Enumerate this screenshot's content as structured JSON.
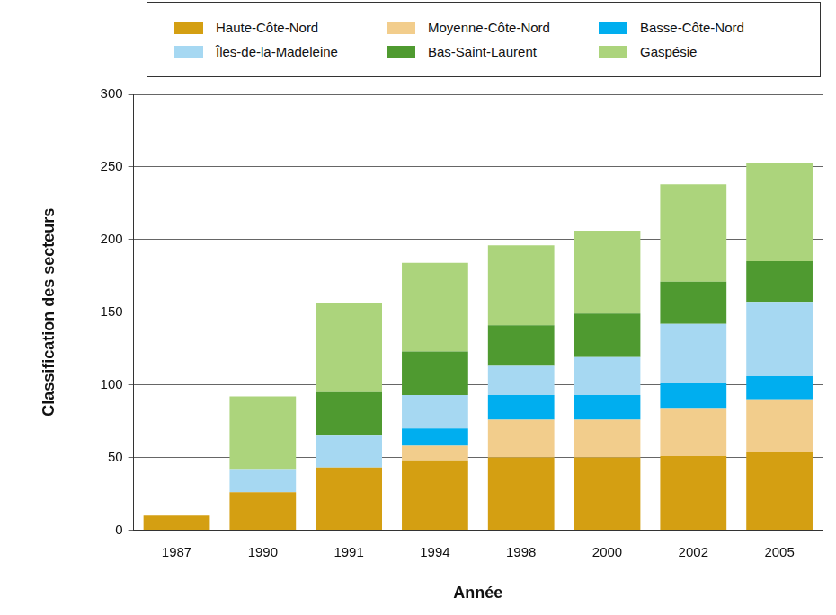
{
  "chart_data": {
    "type": "bar",
    "stacked": true,
    "grid": true,
    "legend": "top",
    "x_label": "Année",
    "y_label": "Classification des secteurs",
    "categories": [
      "1987",
      "1990",
      "1991",
      "1994",
      "1998",
      "2000",
      "2002",
      "2005"
    ],
    "ylim": [
      0,
      300
    ],
    "yticks": [
      0,
      50,
      100,
      150,
      200,
      250,
      300
    ],
    "series": [
      {
        "name": "Haute-Côte-Nord",
        "color": "#d49f12",
        "values": [
          10,
          26,
          43,
          48,
          50,
          50,
          51,
          54
        ]
      },
      {
        "name": "Moyenne-Côte-Nord",
        "color": "#f2cd8c",
        "values": [
          null,
          null,
          null,
          10,
          26,
          26,
          33,
          36
        ]
      },
      {
        "name": "Basse-Côte-Nord",
        "color": "#00aeef",
        "values": [
          null,
          null,
          null,
          12,
          17,
          17,
          17,
          16
        ]
      },
      {
        "name": "Îles-de-la-Madeleine",
        "color": "#a6d8f2",
        "values": [
          null,
          16,
          22,
          23,
          20,
          26,
          41,
          51
        ]
      },
      {
        "name": "Bas-Saint-Laurent",
        "color": "#4f9a30",
        "values": [
          null,
          null,
          30,
          30,
          28,
          30,
          29,
          28
        ]
      },
      {
        "name": "Gaspésie",
        "color": "#acd47c",
        "values": [
          null,
          50,
          61,
          61,
          55,
          57,
          67,
          68
        ]
      }
    ]
  }
}
